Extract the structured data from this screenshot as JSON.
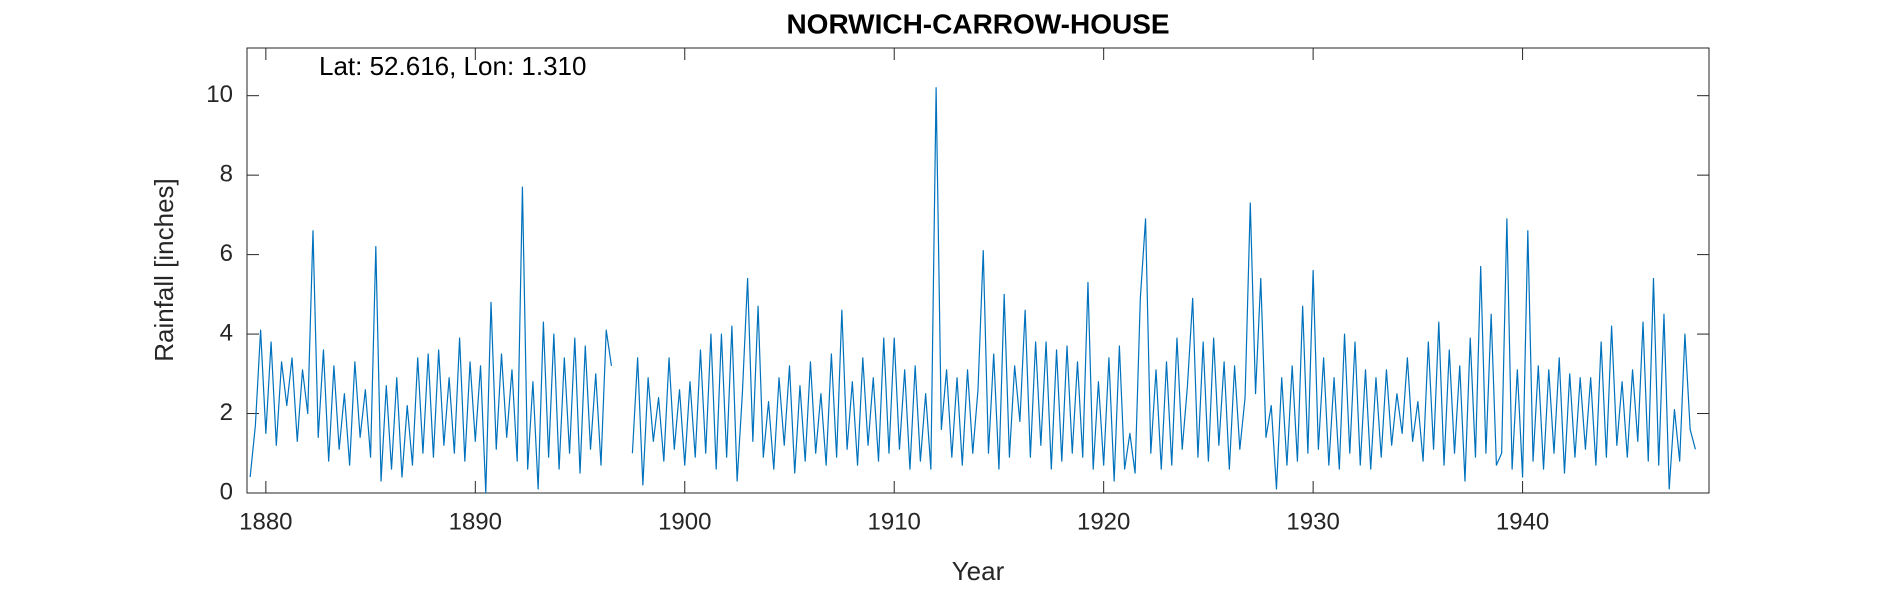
{
  "chart_data": {
    "type": "line",
    "title": "NORWICH-CARROW-HOUSE",
    "annotation": "Lat: 52.616, Lon: 1.310",
    "xlabel": "Year",
    "ylabel": "Rainfall [inches]",
    "xlim": [
      1879.1,
      1948.9
    ],
    "ylim": [
      0,
      11.2
    ],
    "xticks": [
      1880,
      1890,
      1900,
      1910,
      1920,
      1930,
      1940
    ],
    "yticks": [
      0,
      2,
      4,
      6,
      8,
      10
    ],
    "grid": false,
    "box": true,
    "x": [
      1879.25,
      1879.5,
      1879.75,
      1880,
      1880.25,
      1880.5,
      1880.75,
      1881,
      1881.25,
      1881.5,
      1881.75,
      1882,
      1882.25,
      1882.5,
      1882.75,
      1883,
      1883.25,
      1883.5,
      1883.75,
      1884,
      1884.25,
      1884.5,
      1884.75,
      1885,
      1885.25,
      1885.5,
      1885.75,
      1886,
      1886.25,
      1886.5,
      1886.75,
      1887,
      1887.25,
      1887.5,
      1887.75,
      1888,
      1888.25,
      1888.5,
      1888.75,
      1889,
      1889.25,
      1889.5,
      1889.75,
      1890,
      1890.25,
      1890.5,
      1890.75,
      1891,
      1891.25,
      1891.5,
      1891.75,
      1892,
      1892.25,
      1892.5,
      1892.75,
      1893,
      1893.25,
      1893.5,
      1893.75,
      1894,
      1894.25,
      1894.5,
      1894.75,
      1895,
      1895.25,
      1895.5,
      1895.75,
      1896,
      1896.25,
      1896.5,
      1896.75,
      1897,
      1897.25,
      1897.5,
      1897.75,
      1898,
      1898.25,
      1898.5,
      1898.75,
      1899,
      1899.25,
      1899.5,
      1899.75,
      1900,
      1900.25,
      1900.5,
      1900.75,
      1901,
      1901.25,
      1901.5,
      1901.75,
      1902,
      1902.25,
      1902.5,
      1902.75,
      1903,
      1903.25,
      1903.5,
      1903.75,
      1904,
      1904.25,
      1904.5,
      1904.75,
      1905,
      1905.25,
      1905.5,
      1905.75,
      1906,
      1906.25,
      1906.5,
      1906.75,
      1907,
      1907.25,
      1907.5,
      1907.75,
      1908,
      1908.25,
      1908.5,
      1908.75,
      1909,
      1909.25,
      1909.5,
      1909.75,
      1910,
      1910.25,
      1910.5,
      1910.75,
      1911,
      1911.25,
      1911.5,
      1911.75,
      1912,
      1912.25,
      1912.5,
      1912.75,
      1913,
      1913.25,
      1913.5,
      1913.75,
      1914,
      1914.25,
      1914.5,
      1914.75,
      1915,
      1915.25,
      1915.5,
      1915.75,
      1916,
      1916.25,
      1916.5,
      1916.75,
      1917,
      1917.25,
      1917.5,
      1917.75,
      1918,
      1918.25,
      1918.5,
      1918.75,
      1919,
      1919.25,
      1919.5,
      1919.75,
      1920,
      1920.25,
      1920.5,
      1920.75,
      1921,
      1921.25,
      1921.5,
      1921.75,
      1922,
      1922.25,
      1922.5,
      1922.75,
      1923,
      1923.25,
      1923.5,
      1923.75,
      1924,
      1924.25,
      1924.5,
      1924.75,
      1925,
      1925.25,
      1925.5,
      1925.75,
      1926,
      1926.25,
      1926.5,
      1926.75,
      1927,
      1927.25,
      1927.5,
      1927.75,
      1928,
      1928.25,
      1928.5,
      1928.75,
      1929,
      1929.25,
      1929.5,
      1929.75,
      1930,
      1930.25,
      1930.5,
      1930.75,
      1931,
      1931.25,
      1931.5,
      1931.75,
      1932,
      1932.25,
      1932.5,
      1932.75,
      1933,
      1933.25,
      1933.5,
      1933.75,
      1934,
      1934.25,
      1934.5,
      1934.75,
      1935,
      1935.25,
      1935.5,
      1935.75,
      1936,
      1936.25,
      1936.5,
      1936.75,
      1937,
      1937.25,
      1937.5,
      1937.75,
      1938,
      1938.25,
      1938.5,
      1938.75,
      1939,
      1939.25,
      1939.5,
      1939.75,
      1940,
      1940.25,
      1940.5,
      1940.75,
      1941,
      1941.25,
      1941.5,
      1941.75,
      1942,
      1942.25,
      1942.5,
      1942.75,
      1943,
      1943.25,
      1943.5,
      1943.75,
      1944,
      1944.25,
      1944.5,
      1944.75,
      1945,
      1945.25,
      1945.5,
      1945.75,
      1946,
      1946.25,
      1946.5,
      1946.75,
      1947,
      1947.25,
      1947.5,
      1947.75,
      1948,
      1948.25
    ],
    "series": [
      {
        "color": "#0072BD",
        "values": [
          0.4,
          1.7,
          4.1,
          1.5,
          3.8,
          1.2,
          3.3,
          2.2,
          3.4,
          1.3,
          3.1,
          2.0,
          6.6,
          1.4,
          3.6,
          0.8,
          3.2,
          1.1,
          2.5,
          0.7,
          3.3,
          1.4,
          2.6,
          0.9,
          6.2,
          0.3,
          2.7,
          0.6,
          2.9,
          0.4,
          2.2,
          0.7,
          3.4,
          1.0,
          3.5,
          0.9,
          3.6,
          1.2,
          2.9,
          1.0,
          3.9,
          0.8,
          3.3,
          1.3,
          3.2,
          0.0,
          4.8,
          1.1,
          3.5,
          1.4,
          3.1,
          0.8,
          7.7,
          0.6,
          2.8,
          0.1,
          4.3,
          0.9,
          4.0,
          0.6,
          3.4,
          1.0,
          3.9,
          0.5,
          3.7,
          1.1,
          3.0,
          0.7,
          4.1,
          3.2,
          null,
          null,
          null,
          1.0,
          3.4,
          0.2,
          2.9,
          1.3,
          2.4,
          0.8,
          3.4,
          1.1,
          2.6,
          0.7,
          2.8,
          0.9,
          3.6,
          1.0,
          4.0,
          0.6,
          4.0,
          0.9,
          4.2,
          0.3,
          2.5,
          5.4,
          1.3,
          4.7,
          0.9,
          2.3,
          0.6,
          2.9,
          1.2,
          3.2,
          0.5,
          2.7,
          0.8,
          3.3,
          1.0,
          2.5,
          0.7,
          3.5,
          0.9,
          4.6,
          1.1,
          2.8,
          0.7,
          3.4,
          1.2,
          2.9,
          0.8,
          3.9,
          1.0,
          3.9,
          1.1,
          3.1,
          0.6,
          3.2,
          0.8,
          2.5,
          0.6,
          10.2,
          1.6,
          3.1,
          0.9,
          2.9,
          0.7,
          3.1,
          1.0,
          2.6,
          6.1,
          1.0,
          3.5,
          0.6,
          5.0,
          0.9,
          3.2,
          1.8,
          4.6,
          0.9,
          3.8,
          1.2,
          3.8,
          0.6,
          3.6,
          0.8,
          3.7,
          1.0,
          3.3,
          0.9,
          5.3,
          0.6,
          2.8,
          0.7,
          3.4,
          0.3,
          3.7,
          0.6,
          1.5,
          0.5,
          4.9,
          6.9,
          1.0,
          3.1,
          0.6,
          3.3,
          0.7,
          3.9,
          1.1,
          2.7,
          4.9,
          0.9,
          3.8,
          0.8,
          3.9,
          1.2,
          3.3,
          0.6,
          3.2,
          1.1,
          2.4,
          7.3,
          2.5,
          5.4,
          1.4,
          2.2,
          0.1,
          2.9,
          0.7,
          3.2,
          0.8,
          4.7,
          1.0,
          5.6,
          1.1,
          3.4,
          0.7,
          2.9,
          0.6,
          4.0,
          1.0,
          3.8,
          0.7,
          3.1,
          0.6,
          2.9,
          0.9,
          3.1,
          1.2,
          2.5,
          1.5,
          3.4,
          1.3,
          2.3,
          0.8,
          3.8,
          1.1,
          4.3,
          0.7,
          3.6,
          1.0,
          3.2,
          0.3,
          3.9,
          0.9,
          5.7,
          1.0,
          4.5,
          0.7,
          1.0,
          6.9,
          0.6,
          3.1,
          0.4,
          6.6,
          0.8,
          3.2,
          0.6,
          3.1,
          1.0,
          3.4,
          0.5,
          3.0,
          0.9,
          2.9,
          1.1,
          2.9,
          0.7,
          3.8,
          0.9,
          4.2,
          1.2,
          2.8,
          0.9,
          3.1,
          1.3,
          4.3,
          0.8,
          5.4,
          0.7,
          4.5,
          0.1,
          2.1,
          0.8,
          4.0,
          1.6,
          1.1
        ]
      }
    ]
  }
}
